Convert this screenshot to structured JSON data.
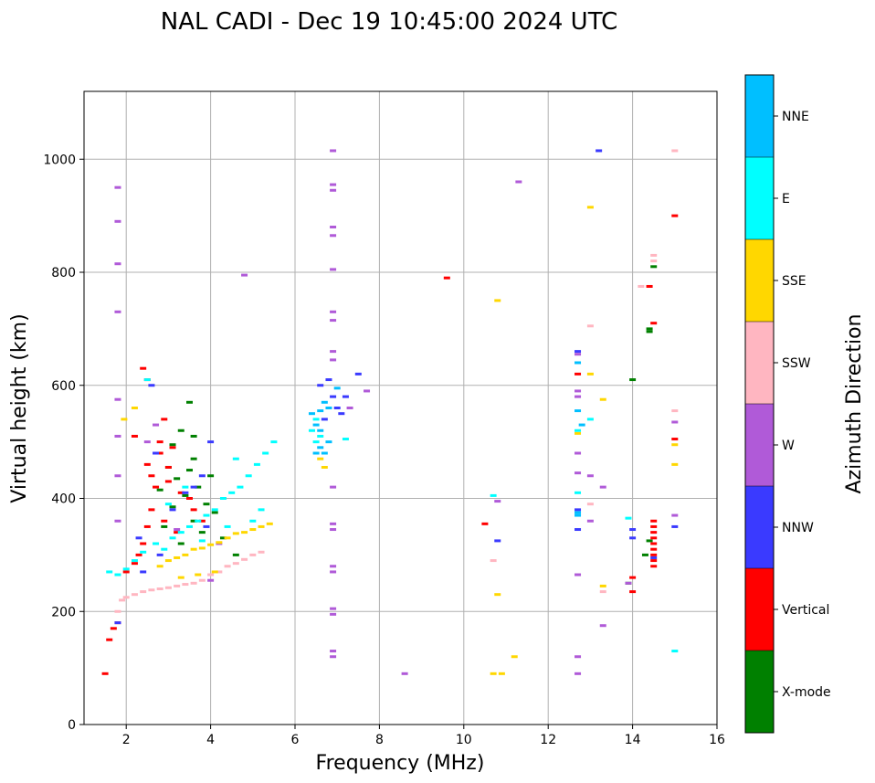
{
  "chart_data": {
    "type": "scatter",
    "title": "NAL CADI - Dec 19 10:45:00 2024 UTC",
    "xlabel": "Frequency (MHz)",
    "ylabel": "Virtual height (km)",
    "xlim": [
      1,
      16
    ],
    "ylim": [
      0,
      1120
    ],
    "xticks": [
      2,
      4,
      6,
      8,
      10,
      12,
      14,
      16
    ],
    "yticks": [
      0,
      200,
      400,
      600,
      800,
      1000
    ],
    "grid": true,
    "colorbar": {
      "label": "Azimuth Direction",
      "categories": [
        {
          "name": "X-mode",
          "color": "#008000"
        },
        {
          "name": "Vertical",
          "color": "#ff0000"
        },
        {
          "name": "NNW",
          "color": "#3a3aff"
        },
        {
          "name": "W",
          "color": "#b05ad8"
        },
        {
          "name": "SSW",
          "color": "#ffb6c1"
        },
        {
          "name": "SSE",
          "color": "#ffd700"
        },
        {
          "name": "E",
          "color": "#00ffff"
        },
        {
          "name": "NNE",
          "color": "#00bfff"
        }
      ]
    },
    "series": [
      {
        "name": "X-mode",
        "points": [
          [
            3.5,
            570
          ],
          [
            3.3,
            520
          ],
          [
            3.6,
            510
          ],
          [
            3.1,
            495
          ],
          [
            3.6,
            470
          ],
          [
            3.0,
            455
          ],
          [
            3.5,
            450
          ],
          [
            4.0,
            440
          ],
          [
            3.2,
            435
          ],
          [
            3.7,
            420
          ],
          [
            2.8,
            415
          ],
          [
            3.4,
            405
          ],
          [
            3.9,
            390
          ],
          [
            3.1,
            385
          ],
          [
            4.1,
            375
          ],
          [
            3.6,
            360
          ],
          [
            2.9,
            350
          ],
          [
            3.8,
            340
          ],
          [
            4.3,
            330
          ],
          [
            3.3,
            320
          ],
          [
            4.6,
            300
          ],
          [
            14.4,
            695
          ],
          [
            14.4,
            700
          ],
          [
            14.0,
            610
          ],
          [
            14.5,
            810
          ],
          [
            14.4,
            325
          ],
          [
            14.3,
            300
          ],
          [
            13.9,
            250
          ]
        ]
      },
      {
        "name": "Vertical",
        "points": [
          [
            1.5,
            90
          ],
          [
            1.6,
            150
          ],
          [
            1.7,
            170
          ],
          [
            1.8,
            180
          ],
          [
            2.0,
            270
          ],
          [
            2.2,
            285
          ],
          [
            2.3,
            300
          ],
          [
            2.4,
            320
          ],
          [
            2.5,
            350
          ],
          [
            2.6,
            380
          ],
          [
            2.7,
            420
          ],
          [
            2.5,
            460
          ],
          [
            2.8,
            480
          ],
          [
            3.1,
            490
          ],
          [
            3.0,
            430
          ],
          [
            3.3,
            410
          ],
          [
            3.5,
            400
          ],
          [
            2.9,
            360
          ],
          [
            3.6,
            380
          ],
          [
            3.2,
            340
          ],
          [
            2.9,
            540
          ],
          [
            3.0,
            455
          ],
          [
            2.8,
            500
          ],
          [
            2.4,
            630
          ],
          [
            2.5,
            610
          ],
          [
            2.2,
            510
          ],
          [
            2.6,
            440
          ],
          [
            3.8,
            360
          ],
          [
            9.6,
            790
          ],
          [
            10.5,
            355
          ],
          [
            12.7,
            620
          ],
          [
            14.0,
            260
          ],
          [
            14.0,
            235
          ],
          [
            14.4,
            775
          ],
          [
            14.5,
            710
          ],
          [
            15.0,
            900
          ],
          [
            15.0,
            505
          ],
          [
            14.5,
            360
          ],
          [
            14.5,
            350
          ],
          [
            14.5,
            340
          ],
          [
            14.5,
            330
          ],
          [
            14.5,
            320
          ],
          [
            14.5,
            310
          ],
          [
            14.5,
            300
          ],
          [
            14.5,
            290
          ],
          [
            14.5,
            280
          ]
        ]
      },
      {
        "name": "NNW",
        "points": [
          [
            2.4,
            270
          ],
          [
            2.8,
            300
          ],
          [
            3.1,
            380
          ],
          [
            3.4,
            410
          ],
          [
            3.6,
            420
          ],
          [
            3.8,
            440
          ],
          [
            2.7,
            480
          ],
          [
            2.6,
            600
          ],
          [
            3.9,
            350
          ],
          [
            4.0,
            500
          ],
          [
            2.3,
            330
          ],
          [
            1.8,
            180
          ],
          [
            6.8,
            610
          ],
          [
            6.9,
            580
          ],
          [
            7.0,
            560
          ],
          [
            6.7,
            540
          ],
          [
            7.1,
            550
          ],
          [
            7.5,
            620
          ],
          [
            7.2,
            580
          ],
          [
            6.6,
            600
          ],
          [
            10.8,
            325
          ],
          [
            12.7,
            380
          ],
          [
            12.7,
            345
          ],
          [
            12.7,
            660
          ],
          [
            13.2,
            1015
          ],
          [
            14.0,
            345
          ],
          [
            14.0,
            330
          ],
          [
            14.5,
            295
          ],
          [
            15.0,
            350
          ]
        ]
      },
      {
        "name": "W",
        "points": [
          [
            1.8,
            950
          ],
          [
            1.8,
            890
          ],
          [
            1.8,
            815
          ],
          [
            1.8,
            730
          ],
          [
            1.8,
            575
          ],
          [
            1.8,
            510
          ],
          [
            1.8,
            440
          ],
          [
            1.8,
            360
          ],
          [
            2.5,
            500
          ],
          [
            4.8,
            795
          ],
          [
            4.0,
            255
          ],
          [
            4.2,
            320
          ],
          [
            3.2,
            345
          ],
          [
            2.7,
            530
          ],
          [
            6.9,
            1015
          ],
          [
            6.9,
            955
          ],
          [
            6.9,
            945
          ],
          [
            6.9,
            880
          ],
          [
            6.9,
            865
          ],
          [
            6.9,
            805
          ],
          [
            6.9,
            730
          ],
          [
            6.9,
            715
          ],
          [
            6.9,
            660
          ],
          [
            6.9,
            645
          ],
          [
            6.9,
            420
          ],
          [
            6.9,
            355
          ],
          [
            6.9,
            345
          ],
          [
            6.9,
            280
          ],
          [
            6.9,
            270
          ],
          [
            6.9,
            205
          ],
          [
            6.9,
            195
          ],
          [
            6.9,
            130
          ],
          [
            6.9,
            120
          ],
          [
            7.7,
            590
          ],
          [
            7.3,
            560
          ],
          [
            8.6,
            90
          ],
          [
            10.8,
            395
          ],
          [
            11.3,
            960
          ],
          [
            12.7,
            655
          ],
          [
            12.7,
            590
          ],
          [
            12.7,
            580
          ],
          [
            12.7,
            480
          ],
          [
            12.7,
            445
          ],
          [
            12.7,
            265
          ],
          [
            12.7,
            120
          ],
          [
            12.7,
            90
          ],
          [
            13.0,
            440
          ],
          [
            13.0,
            360
          ],
          [
            13.3,
            420
          ],
          [
            13.3,
            175
          ],
          [
            13.9,
            250
          ],
          [
            15.0,
            535
          ],
          [
            15.0,
            370
          ]
        ]
      },
      {
        "name": "SSW",
        "points": [
          [
            1.9,
            220
          ],
          [
            2.0,
            225
          ],
          [
            2.2,
            230
          ],
          [
            2.4,
            235
          ],
          [
            2.6,
            238
          ],
          [
            2.8,
            240
          ],
          [
            3.0,
            242
          ],
          [
            3.2,
            245
          ],
          [
            3.4,
            248
          ],
          [
            3.6,
            250
          ],
          [
            3.8,
            255
          ],
          [
            4.0,
            265
          ],
          [
            4.2,
            270
          ],
          [
            4.4,
            280
          ],
          [
            4.6,
            285
          ],
          [
            4.8,
            292
          ],
          [
            5.0,
            300
          ],
          [
            5.2,
            305
          ],
          [
            1.8,
            200
          ],
          [
            10.7,
            290
          ],
          [
            13.0,
            705
          ],
          [
            13.0,
            390
          ],
          [
            13.3,
            235
          ],
          [
            14.2,
            775
          ],
          [
            14.5,
            830
          ],
          [
            14.5,
            820
          ],
          [
            15.0,
            1015
          ],
          [
            15.0,
            555
          ]
        ]
      },
      {
        "name": "SSE",
        "points": [
          [
            2.8,
            280
          ],
          [
            3.0,
            290
          ],
          [
            3.2,
            295
          ],
          [
            3.4,
            300
          ],
          [
            3.6,
            310
          ],
          [
            3.8,
            312
          ],
          [
            4.0,
            318
          ],
          [
            4.2,
            322
          ],
          [
            4.4,
            330
          ],
          [
            4.6,
            338
          ],
          [
            4.8,
            340
          ],
          [
            5.0,
            345
          ],
          [
            5.2,
            350
          ],
          [
            5.4,
            355
          ],
          [
            3.3,
            260
          ],
          [
            3.7,
            265
          ],
          [
            4.1,
            270
          ],
          [
            2.2,
            560
          ],
          [
            1.95,
            540
          ],
          [
            6.6,
            470
          ],
          [
            6.7,
            455
          ],
          [
            10.8,
            230
          ],
          [
            10.8,
            750
          ],
          [
            10.7,
            90
          ],
          [
            10.9,
            90
          ],
          [
            11.2,
            120
          ],
          [
            12.7,
            515
          ],
          [
            13.0,
            915
          ],
          [
            13.0,
            620
          ],
          [
            13.3,
            575
          ],
          [
            13.3,
            245
          ],
          [
            15.0,
            495
          ],
          [
            15.0,
            460
          ]
        ]
      },
      {
        "name": "E",
        "points": [
          [
            1.6,
            270
          ],
          [
            1.8,
            265
          ],
          [
            2.0,
            275
          ],
          [
            2.2,
            290
          ],
          [
            2.4,
            305
          ],
          [
            2.7,
            320
          ],
          [
            2.9,
            310
          ],
          [
            3.1,
            330
          ],
          [
            3.3,
            340
          ],
          [
            3.5,
            350
          ],
          [
            3.7,
            360
          ],
          [
            3.9,
            370
          ],
          [
            4.1,
            380
          ],
          [
            4.3,
            400
          ],
          [
            4.5,
            410
          ],
          [
            4.7,
            420
          ],
          [
            4.9,
            440
          ],
          [
            5.1,
            460
          ],
          [
            5.3,
            480
          ],
          [
            5.5,
            500
          ],
          [
            2.5,
            610
          ],
          [
            3.4,
            420
          ],
          [
            3.0,
            390
          ],
          [
            4.6,
            470
          ],
          [
            5.2,
            380
          ],
          [
            5.0,
            360
          ],
          [
            4.4,
            350
          ],
          [
            3.8,
            325
          ],
          [
            6.4,
            520
          ],
          [
            6.5,
            540
          ],
          [
            6.6,
            510
          ],
          [
            6.5,
            500
          ],
          [
            7.2,
            505
          ],
          [
            10.7,
            405
          ],
          [
            12.7,
            410
          ],
          [
            12.7,
            520
          ],
          [
            13.0,
            540
          ],
          [
            13.9,
            365
          ],
          [
            15.0,
            130
          ]
        ]
      },
      {
        "name": "NNE",
        "points": [
          [
            6.4,
            550
          ],
          [
            6.5,
            530
          ],
          [
            6.6,
            520
          ],
          [
            6.6,
            490
          ],
          [
            6.7,
            480
          ],
          [
            6.8,
            500
          ],
          [
            6.5,
            480
          ],
          [
            6.8,
            560
          ],
          [
            7.0,
            595
          ],
          [
            6.7,
            570
          ],
          [
            6.6,
            555
          ],
          [
            12.7,
            640
          ],
          [
            12.7,
            555
          ],
          [
            12.7,
            375
          ],
          [
            12.7,
            370
          ],
          [
            12.8,
            530
          ]
        ]
      }
    ]
  }
}
